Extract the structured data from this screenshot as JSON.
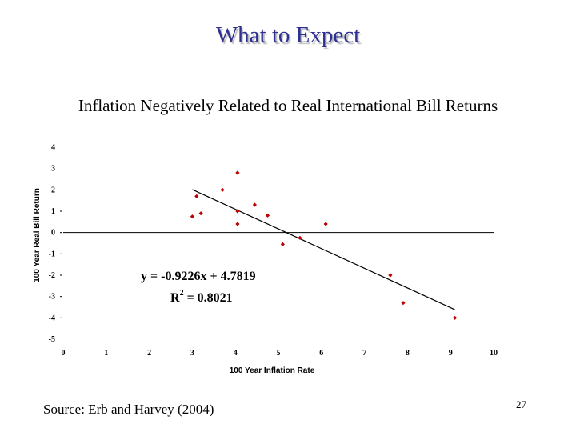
{
  "slide": {
    "title": "What to Expect",
    "source": "Source: Erb and Harvey (2004)",
    "page_number": "27"
  },
  "colors": {
    "title": "#2e3192",
    "points": "#c00000",
    "line": "#000000"
  },
  "chart_data": {
    "type": "scatter",
    "title": "Inflation Negatively Related to Real International Bill Returns",
    "xlabel": "100 Year Inflation Rate",
    "ylabel": "100 Year Real Bill Return",
    "xlim": [
      0,
      10
    ],
    "ylim": [
      -5,
      4
    ],
    "xticks": [
      "0",
      "1",
      "2",
      "3",
      "4",
      "5",
      "6",
      "7",
      "8",
      "9",
      "10"
    ],
    "yticks": [
      "4",
      "3",
      "2",
      "1",
      "0",
      "-1",
      "-2",
      "-3",
      "-4",
      "-5"
    ],
    "points": [
      {
        "x": 3.0,
        "y": 0.75
      },
      {
        "x": 3.1,
        "y": 1.7
      },
      {
        "x": 3.2,
        "y": 0.9
      },
      {
        "x": 3.7,
        "y": 2.0
      },
      {
        "x": 4.05,
        "y": 2.8
      },
      {
        "x": 4.05,
        "y": 1.0
      },
      {
        "x": 4.05,
        "y": 0.4
      },
      {
        "x": 4.45,
        "y": 1.3
      },
      {
        "x": 4.75,
        "y": 0.8
      },
      {
        "x": 5.1,
        "y": -0.55
      },
      {
        "x": 5.5,
        "y": -0.25
      },
      {
        "x": 6.1,
        "y": 0.4
      },
      {
        "x": 7.6,
        "y": -2.0
      },
      {
        "x": 7.9,
        "y": -3.3
      },
      {
        "x": 9.1,
        "y": -4.0
      }
    ],
    "trendline": {
      "slope": -0.9226,
      "intercept": 4.7819,
      "x_range": [
        3.0,
        9.1
      ]
    },
    "equation_label": "y = -0.9226x + 4.7819",
    "r2_label": {
      "base": "R",
      "sup": "2",
      "rest": " = 0.8021"
    },
    "grid": false
  }
}
